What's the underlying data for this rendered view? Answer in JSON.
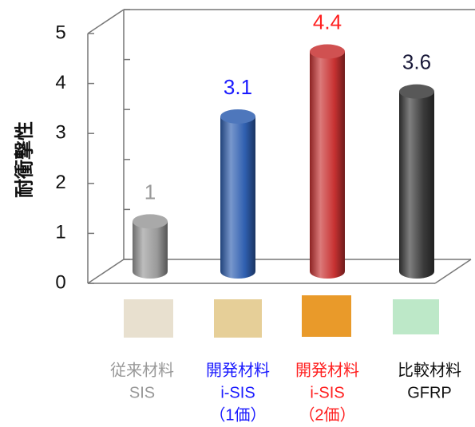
{
  "chart_data": {
    "type": "bar",
    "ylabel": "耐衝撃性",
    "categories": [
      [
        "従来材料",
        "SIS"
      ],
      [
        "開発材料",
        "i-SIS",
        "（1価）"
      ],
      [
        "開発材料",
        "i-SIS",
        "（2価）"
      ],
      [
        "比較材料",
        "GFRP"
      ]
    ],
    "values": [
      1,
      3.1,
      4.4,
      3.6
    ],
    "colors": [
      "#9a9a9a",
      "#2f5fb0",
      "#c83232",
      "#3a3a3a"
    ],
    "label_colors": [
      "#999999",
      "#1a1aff",
      "#ff2020",
      "#1a1a3a"
    ],
    "category_colors": [
      "#999999",
      "#1a1aff",
      "#ff2020",
      "#111111"
    ],
    "ylim": [
      0,
      5
    ],
    "yticks": [
      0,
      1,
      2,
      3,
      4,
      5
    ]
  }
}
